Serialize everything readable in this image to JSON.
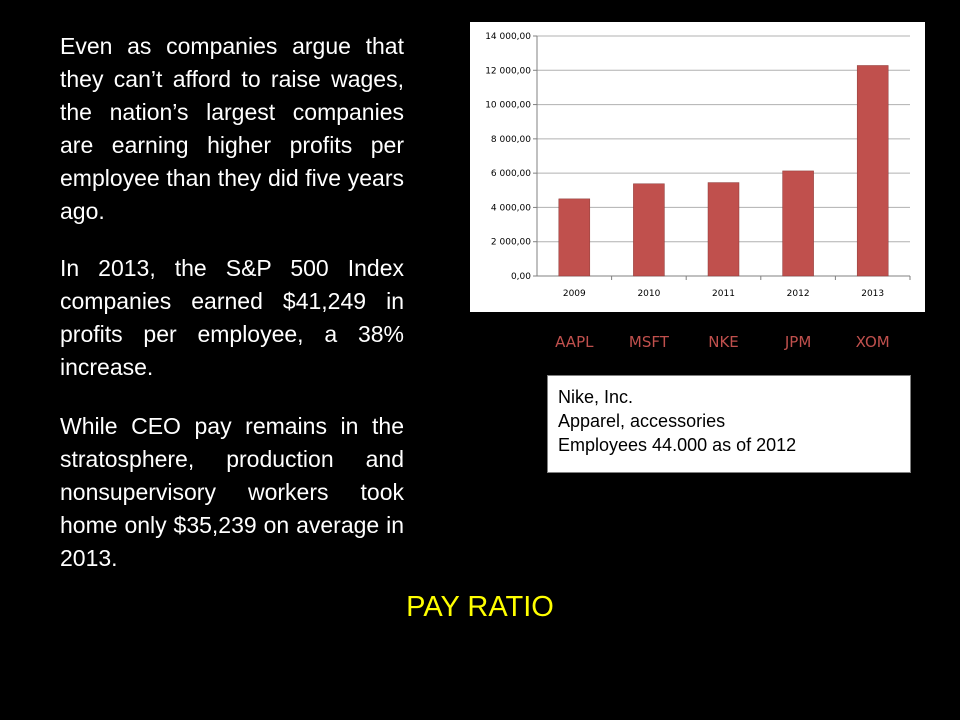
{
  "text": {
    "paragraphs": [
      "Even as companies argue that they can’t afford to raise wages, the nation’s largest companies are earning higher profits per employee than they did five years ago.",
      "In 2013, the S&P 500 Index companies earned $41,249 in profits per employee, a 38% increase.",
      "While CEO pay remains in the stratosphere, production and nonsupervisory workers took home only $35,239 on average in 2013."
    ]
  },
  "company_labels": [
    "AAPL",
    "MSFT",
    "NKE",
    "JPM",
    "XOM"
  ],
  "info_box": {
    "name": "Nike, Inc.",
    "industry": "Apparel, accessories",
    "employees": "Employees 44.000 as of 2012"
  },
  "footer": {
    "title": "PAY RATIO"
  },
  "colors": {
    "background": "#000000",
    "bar": "#c0504d",
    "footer_text": "#ffff00",
    "body_text": "#ffffff",
    "company_labels": "#c0504d"
  },
  "chart_data": {
    "type": "bar",
    "categories": [
      "2009",
      "2010",
      "2011",
      "2012",
      "2013"
    ],
    "values": [
      4500,
      5380,
      5450,
      6130,
      12280
    ],
    "ylim": [
      0,
      14000
    ],
    "yticks": [
      0,
      2000,
      4000,
      6000,
      8000,
      10000,
      12000,
      14000
    ],
    "ytick_labels": [
      "0,00",
      "2 000,00",
      "4 000,00",
      "6 000,00",
      "8 000,00",
      "10 000,00",
      "12 000,00",
      "14 000,00"
    ],
    "grid": true,
    "legend": false,
    "title": "",
    "xlabel": "",
    "ylabel": ""
  }
}
